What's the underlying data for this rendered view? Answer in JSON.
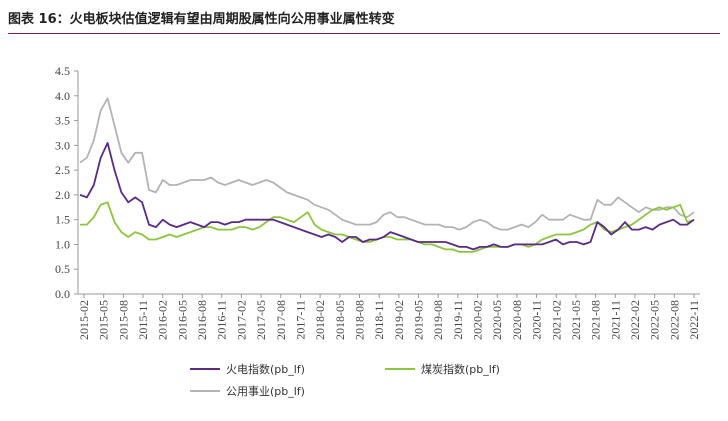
{
  "page": {
    "title": "图表 16：火电板块估值逻辑有望由周期股属性向公用事业属性转变"
  },
  "colors": {
    "title_rule": "#7a1f5c"
  },
  "chart_data": {
    "type": "line",
    "title": "图表 16：火电板块估值逻辑有望由周期股属性向公用事业属性转变",
    "xlabel": "",
    "ylabel": "",
    "ylim": [
      0,
      4.5
    ],
    "yticks": [
      "0.0",
      "0.5",
      "1.0",
      "1.5",
      "2.0",
      "2.5",
      "3.0",
      "3.5",
      "4.0",
      "4.5"
    ],
    "x_tick_labels": [
      "2015-02",
      "2015-05",
      "2015-08",
      "2015-11",
      "2016-02",
      "2016-05",
      "2016-08",
      "2016-11",
      "2017-02",
      "2017-05",
      "2017-08",
      "2017-11",
      "2018-02",
      "2018-05",
      "2018-08",
      "2018-11",
      "2019-02",
      "2019-05",
      "2019-08",
      "2019-11",
      "2020-02",
      "2020-05",
      "2020-08",
      "2020-11",
      "2021-02",
      "2021-05",
      "2021-08",
      "2021-11",
      "2022-02",
      "2022-05",
      "2022-08",
      "2022-11"
    ],
    "grid": false,
    "legend_position": "bottom",
    "series": [
      {
        "name": "火电指数(pb_lf)",
        "color": "#5b2a86",
        "values": [
          2.0,
          1.95,
          2.2,
          2.75,
          3.05,
          2.5,
          2.05,
          1.85,
          1.95,
          1.85,
          1.4,
          1.35,
          1.5,
          1.4,
          1.35,
          1.4,
          1.45,
          1.4,
          1.35,
          1.45,
          1.45,
          1.4,
          1.45,
          1.45,
          1.5,
          1.5,
          1.5,
          1.5,
          1.5,
          1.45,
          1.4,
          1.35,
          1.3,
          1.25,
          1.2,
          1.15,
          1.2,
          1.15,
          1.05,
          1.15,
          1.15,
          1.05,
          1.1,
          1.1,
          1.15,
          1.25,
          1.2,
          1.15,
          1.1,
          1.05,
          1.05,
          1.05,
          1.05,
          1.05,
          1.0,
          0.95,
          0.95,
          0.9,
          0.95,
          0.95,
          1.0,
          0.95,
          0.95,
          1.0,
          1.0,
          1.0,
          1.0,
          1.0,
          1.05,
          1.1,
          1.0,
          1.05,
          1.05,
          1.0,
          1.05,
          1.45,
          1.35,
          1.2,
          1.3,
          1.45,
          1.3,
          1.3,
          1.35,
          1.3,
          1.4,
          1.45,
          1.5,
          1.4,
          1.4,
          1.5
        ]
      },
      {
        "name": "煤炭指数(pb_lf)",
        "color": "#8cc63f",
        "values": [
          1.4,
          1.4,
          1.55,
          1.8,
          1.85,
          1.45,
          1.25,
          1.15,
          1.25,
          1.2,
          1.1,
          1.1,
          1.15,
          1.2,
          1.15,
          1.2,
          1.25,
          1.3,
          1.35,
          1.35,
          1.3,
          1.3,
          1.3,
          1.35,
          1.35,
          1.3,
          1.35,
          1.45,
          1.55,
          1.55,
          1.5,
          1.45,
          1.55,
          1.65,
          1.4,
          1.3,
          1.25,
          1.2,
          1.2,
          1.15,
          1.1,
          1.05,
          1.05,
          1.1,
          1.15,
          1.15,
          1.1,
          1.1,
          1.1,
          1.05,
          1.0,
          1.0,
          0.95,
          0.9,
          0.9,
          0.85,
          0.85,
          0.85,
          0.9,
          0.95,
          0.95,
          0.95,
          0.95,
          1.0,
          1.0,
          0.95,
          1.0,
          1.1,
          1.15,
          1.2,
          1.2,
          1.2,
          1.25,
          1.3,
          1.4,
          1.45,
          1.3,
          1.25,
          1.3,
          1.35,
          1.4,
          1.5,
          1.6,
          1.7,
          1.75,
          1.7,
          1.75,
          1.8,
          1.45,
          1.5
        ]
      },
      {
        "name": "公用事业(pb_lf)",
        "color": "#b3b3b3",
        "values": [
          2.65,
          2.75,
          3.1,
          3.7,
          3.95,
          3.4,
          2.85,
          2.65,
          2.85,
          2.85,
          2.1,
          2.05,
          2.3,
          2.2,
          2.2,
          2.25,
          2.3,
          2.3,
          2.3,
          2.35,
          2.25,
          2.2,
          2.25,
          2.3,
          2.25,
          2.2,
          2.25,
          2.3,
          2.25,
          2.15,
          2.05,
          2.0,
          1.95,
          1.9,
          1.8,
          1.75,
          1.7,
          1.6,
          1.5,
          1.45,
          1.4,
          1.4,
          1.4,
          1.45,
          1.6,
          1.65,
          1.55,
          1.55,
          1.5,
          1.45,
          1.4,
          1.4,
          1.4,
          1.35,
          1.35,
          1.3,
          1.35,
          1.45,
          1.5,
          1.45,
          1.35,
          1.3,
          1.3,
          1.35,
          1.4,
          1.35,
          1.45,
          1.6,
          1.5,
          1.5,
          1.5,
          1.6,
          1.55,
          1.5,
          1.5,
          1.9,
          1.8,
          1.8,
          1.95,
          1.85,
          1.75,
          1.65,
          1.75,
          1.7,
          1.7,
          1.75,
          1.75,
          1.6,
          1.55,
          1.65
        ]
      }
    ]
  }
}
